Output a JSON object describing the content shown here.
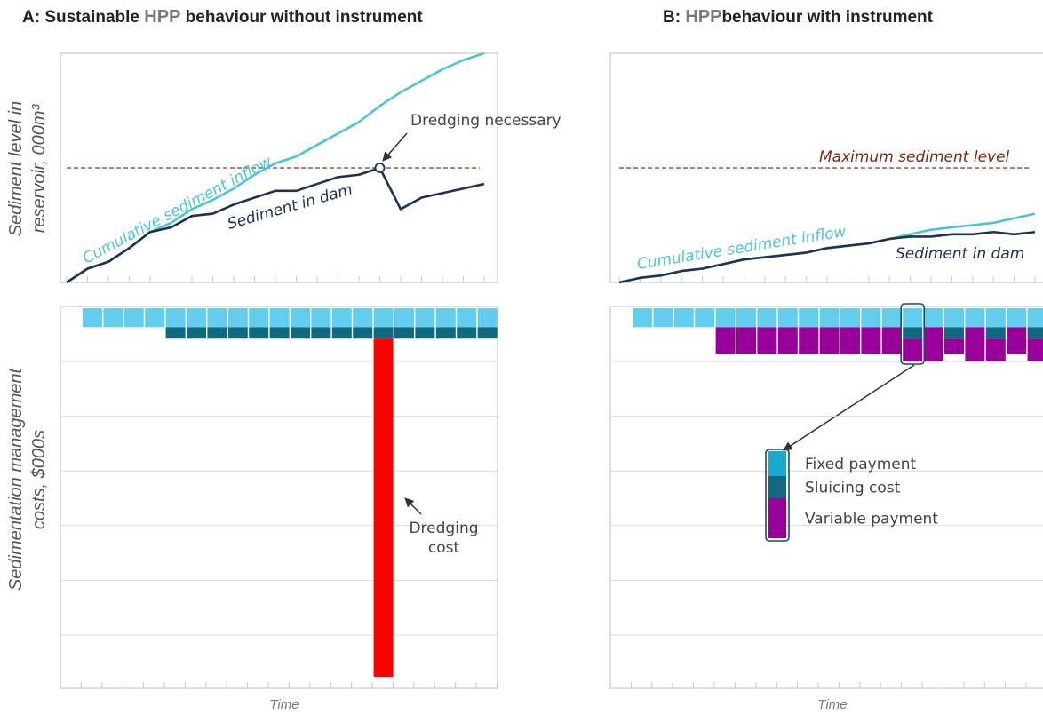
{
  "chart_data": [
    {
      "type": "line",
      "title_parts": [
        "A: Sustainable ",
        "HPP",
        " behaviour without instrument"
      ],
      "ylabel": "Sediment level in reservoir, 000m³",
      "x": [
        0,
        1,
        2,
        3,
        4,
        5,
        6,
        7,
        8,
        9,
        10,
        11,
        12,
        13,
        14,
        15,
        16,
        17,
        18,
        19,
        20
      ],
      "xlim": [
        0,
        20
      ],
      "ylim": [
        0,
        100
      ],
      "reference_line": 50,
      "annotation": "Dredging necessary",
      "series": [
        {
          "name": "Cumulative sediment inflow",
          "color": "#4cc4d8",
          "values": [
            0,
            6,
            9,
            15,
            22,
            26,
            32,
            36,
            41,
            47,
            52,
            55,
            60,
            65,
            70,
            77,
            83,
            88,
            93,
            97,
            100
          ]
        },
        {
          "name": "Sediment in dam",
          "color": "#1e3350",
          "values": [
            0,
            6,
            9,
            15,
            22,
            24,
            29,
            30,
            34,
            37,
            40,
            40,
            43,
            46,
            47,
            50,
            32,
            37,
            39,
            41,
            43
          ]
        }
      ]
    },
    {
      "type": "stacked_bar",
      "ylabel": "Sedimentation management costs, $000s",
      "xlabel": "Time",
      "categories": [
        null,
        null,
        null,
        null,
        null,
        null,
        null,
        null,
        null,
        null,
        null,
        null,
        null,
        null,
        null,
        null,
        null,
        null,
        null,
        null
      ],
      "ylim": [
        0,
        100
      ],
      "y_inverted": true,
      "series": [
        {
          "color": "#62cdec",
          "values": [
            5,
            5,
            5,
            5,
            5,
            5,
            5,
            5,
            5,
            5,
            5,
            5,
            5,
            5,
            5,
            5,
            5,
            5,
            5,
            5
          ]
        },
        {
          "color": "#12687e",
          "values": [
            null,
            null,
            null,
            null,
            3,
            3,
            3,
            3,
            3,
            3,
            3,
            3,
            3,
            3,
            3,
            3,
            3,
            3,
            3,
            3
          ]
        },
        {
          "name": "Dredging cost",
          "color": "#ff0000",
          "values": [
            null,
            null,
            null,
            null,
            null,
            null,
            null,
            null,
            null,
            null,
            null,
            null,
            null,
            null,
            89,
            null,
            null,
            null,
            null,
            null
          ]
        }
      ]
    },
    {
      "type": "line",
      "title_parts": [
        "B: ",
        "HPP",
        "behaviour with instrument"
      ],
      "x": [
        0,
        1,
        2,
        3,
        4,
        5,
        6,
        7,
        8,
        9,
        10,
        11,
        12,
        13,
        14,
        15,
        16,
        17,
        18,
        19,
        20
      ],
      "xlim": [
        0,
        20
      ],
      "ylim": [
        0,
        100
      ],
      "reference_line": 50,
      "reference_label": "Maximum sediment level",
      "series": [
        {
          "name": "Cumulative sediment inflow",
          "color": "#4cc4d8",
          "values": [
            0,
            2,
            3,
            5,
            6,
            8,
            10,
            11,
            12,
            13,
            15,
            16,
            17,
            19,
            21,
            23,
            24,
            25,
            26,
            28,
            30
          ]
        },
        {
          "name": "Sediment in dam",
          "color": "#1e3350",
          "values": [
            0,
            2,
            3,
            5,
            6,
            8,
            10,
            11,
            12,
            13,
            15,
            16,
            17,
            19,
            20,
            20,
            21,
            21,
            22,
            21,
            22
          ]
        }
      ]
    },
    {
      "type": "stacked_bar",
      "xlabel": "Time",
      "categories": [
        null,
        null,
        null,
        null,
        null,
        null,
        null,
        null,
        null,
        null,
        null,
        null,
        null,
        null,
        null,
        null,
        null,
        null,
        null,
        null
      ],
      "ylim": [
        0,
        100
      ],
      "y_inverted": true,
      "legend": "center",
      "series": [
        {
          "name": "Fixed payment",
          "color": "#62cdec",
          "values": [
            5,
            5,
            5,
            5,
            5,
            5,
            5,
            5,
            5,
            5,
            5,
            5,
            5,
            5,
            5,
            5,
            5,
            5,
            5,
            5
          ]
        },
        {
          "name": "Sluicing cost",
          "color": "#12687e",
          "values": [
            null,
            null,
            null,
            null,
            null,
            null,
            null,
            null,
            null,
            null,
            null,
            null,
            null,
            3,
            null,
            3,
            null,
            3,
            null,
            3
          ]
        },
        {
          "name": "Variable payment",
          "color": "#990099",
          "values": [
            null,
            null,
            null,
            null,
            7,
            7,
            7,
            7,
            7,
            7,
            7,
            7,
            7,
            6,
            9,
            4,
            9,
            6,
            7,
            6
          ]
        }
      ]
    }
  ]
}
